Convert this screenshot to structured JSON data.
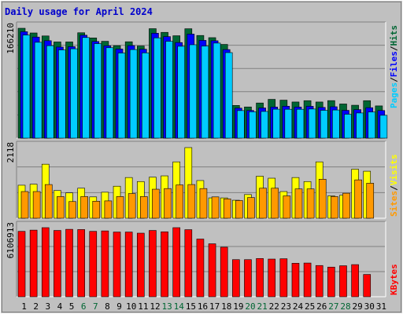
{
  "chart_data": {
    "type": "bar",
    "title": "Daily usage for April 2024",
    "categories": [
      "1",
      "2",
      "3",
      "4",
      "5",
      "6",
      "7",
      "8",
      "9",
      "10",
      "11",
      "12",
      "13",
      "14",
      "15",
      "16",
      "17",
      "18",
      "19",
      "20",
      "21",
      "22",
      "23",
      "24",
      "25",
      "26",
      "27",
      "28",
      "29",
      "30",
      "31"
    ],
    "weekend_days": [
      "6",
      "7",
      "13",
      "14",
      "20",
      "21",
      "27",
      "28"
    ],
    "panels": [
      {
        "max_label": "166210",
        "ylim": [
          0,
          166210
        ],
        "series": [
          {
            "name": "Hits",
            "color": "#006633",
            "values": [
              166210,
              159100,
              154600,
              145500,
              145500,
              159400,
              151600,
              146500,
              139900,
              145800,
              139400,
              165600,
              160000,
              154900,
              165500,
              155300,
              152000,
              141800,
              49500,
              47200,
              53200,
              58700,
              57500,
              54700,
              56700,
              54700,
              56800,
              51700,
              49800,
              56700,
              48800
            ]
          },
          {
            "name": "Files",
            "color": "#0000ff",
            "values": [
              161000,
              152900,
              147400,
              137800,
              138400,
              155700,
              146200,
              139700,
              134800,
              140000,
              134500,
              158700,
              153600,
              144600,
              157400,
              147900,
              147300,
              134000,
              45400,
              41900,
              45700,
              47100,
              48300,
              47100,
              48200,
              46500,
              47500,
              42100,
              43200,
              46100,
              41800
            ]
          },
          {
            "name": "Pages",
            "color": "#00ccff",
            "values": [
              156000,
              145000,
              139900,
              133500,
              135200,
              152200,
              143000,
              136800,
              128800,
              134000,
              129000,
              151700,
              146500,
              139000,
              141300,
              139200,
              143800,
              129400,
              41700,
              39900,
              40400,
              43800,
              43700,
              43700,
              44100,
              42100,
              42600,
              36200,
              38100,
              39600,
              34600
            ]
          }
        ]
      },
      {
        "max_label": "2118",
        "ylim": [
          0,
          2118
        ],
        "series": [
          {
            "name": "Visits",
            "color": "#ffff00",
            "values": [
              990,
              1020,
              1620,
              830,
              760,
              900,
              640,
              780,
              960,
              1220,
              1100,
              1230,
              1270,
              1690,
              2118,
              1130,
              610,
              610,
              540,
              710,
              1260,
              1200,
              800,
              1220,
              1100,
              1690,
              670,
              690,
              1470,
              1410,
              0
            ]
          },
          {
            "name": "Sites",
            "color": "#ff9900",
            "values": [
              800,
              800,
              1010,
              650,
              500,
              650,
              510,
              520,
              650,
              740,
              650,
              870,
              890,
              1000,
              1010,
              890,
              640,
              580,
              530,
              620,
              900,
              900,
              670,
              880,
              880,
              1170,
              650,
              750,
              1150,
              1050,
              0
            ]
          }
        ]
      },
      {
        "max_label": "6106913",
        "ylim": [
          0,
          6106913
        ],
        "series": [
          {
            "name": "KBytes",
            "color": "#ff0000",
            "values": [
              5780000,
              5890000,
              6106913,
              5860000,
              5960000,
              5940000,
              5780000,
              5820000,
              5720000,
              5720000,
              5620000,
              5860000,
              5740000,
              6106913,
              5930000,
              5100000,
              4680000,
              4380000,
              3280000,
              3280000,
              3380000,
              3330000,
              3360000,
              2960000,
              2980000,
              2760000,
              2620000,
              2740000,
              2840000,
              1970000,
              0
            ]
          }
        ]
      }
    ],
    "axis_labels": [
      {
        "text": "Pages",
        "color": "#00ccff"
      },
      {
        "text": "Files",
        "color": "#0000ff"
      },
      {
        "text": "Hits",
        "color": "#006633"
      },
      {
        "text": "Sites",
        "color": "#ff9900"
      },
      {
        "text": "Visits",
        "color": "#ffff00"
      },
      {
        "text": "KBytes",
        "color": "#ff0000"
      }
    ],
    "separator": "/",
    "colors": {
      "background": "#c0c0c0",
      "title": "#0000cc",
      "weekday_tick": "#000000",
      "weekend_tick": "#006633",
      "grid": "#808080"
    },
    "grid": true
  }
}
